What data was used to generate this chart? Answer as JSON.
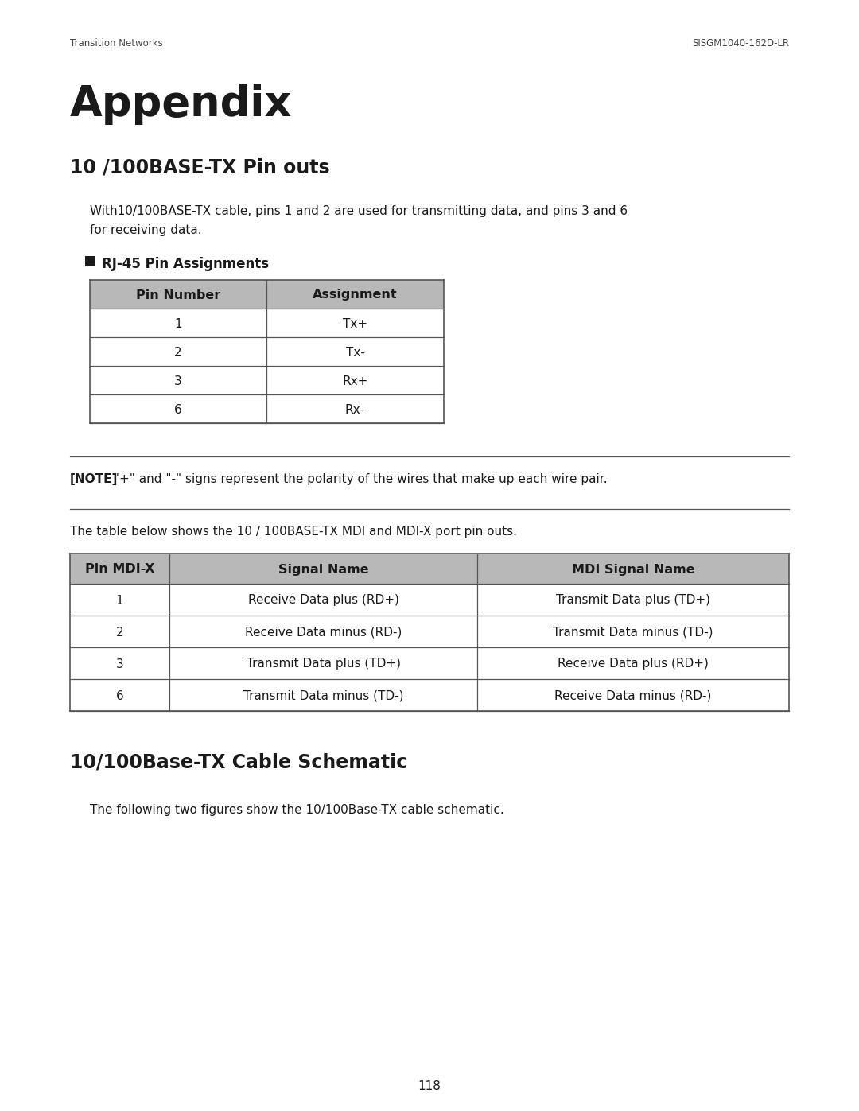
{
  "header_left": "Transition Networks",
  "header_right": "SISGM1040-162D-LR",
  "appendix_title": "Appendix",
  "section1_title": "10 /100BASE-TX Pin outs",
  "section1_intro_line1": "With10/100BASE-TX cable, pins 1 and 2 are used for transmitting data, and pins 3 and 6",
  "section1_intro_line2": "for receiving data.",
  "rj45_label": "RJ-45 Pin Assignments",
  "table1_headers": [
    "Pin Number",
    "Assignment"
  ],
  "table1_rows": [
    [
      "1",
      "Tx+"
    ],
    [
      "2",
      "Tx-"
    ],
    [
      "3",
      "Rx+"
    ],
    [
      "6",
      "Rx-"
    ]
  ],
  "note_bold": "[NOTE]",
  "note_rest": " \"+\" and \"-\" signs represent the polarity of the wires that make up each wire pair.",
  "table2_intro": "The table below shows the 10 / 100BASE-TX MDI and MDI-X port pin outs.",
  "table2_headers": [
    "Pin MDI-X",
    "Signal Name",
    "MDI Signal Name"
  ],
  "table2_rows": [
    [
      "1",
      "Receive Data plus (RD+)",
      "Transmit Data plus (TD+)"
    ],
    [
      "2",
      "Receive Data minus (RD-)",
      "Transmit Data minus (TD-)"
    ],
    [
      "3",
      "Transmit Data plus (TD+)",
      "Receive Data plus (RD+)"
    ],
    [
      "6",
      "Transmit Data minus (TD-)",
      "Receive Data minus (RD-)"
    ]
  ],
  "section2_title": "10/100Base-TX Cable Schematic",
  "section2_intro": "The following two figures show the 10/100Base-TX cable schematic.",
  "page_number": "118",
  "table_header_bg": "#b8b8b8",
  "text_color": "#1a1a1a",
  "background_color": "#ffffff",
  "border_color": "#555555",
  "header_text_color": "#444444",
  "rule_color": "#555555"
}
